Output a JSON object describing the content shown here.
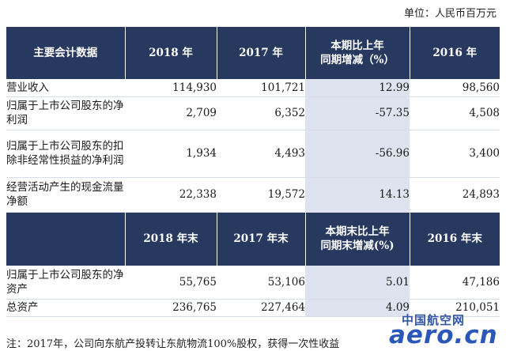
{
  "unit_text": "单位：人民币百万元",
  "header1": {
    "label": "主要会计数据",
    "col2018": "2018 年",
    "col2017": "2017 年",
    "change_line1": "本期比上年",
    "change_line2": "同期增减（%）",
    "col2016": "2016 年"
  },
  "rows1": [
    {
      "label": "营业收入",
      "v2018": "114,930",
      "v2017": "101,721",
      "change": "12.99",
      "v2016": "98,560"
    },
    {
      "label": "归属于上市公司股东的净利润",
      "v2018": "2,709",
      "v2017": "6,352",
      "change": "-57.35",
      "v2016": "4,508"
    },
    {
      "label": "归属于上市公司股东的扣除非经常性损益的净利润",
      "v2018": "1,934",
      "v2017": "4,493",
      "change": "-56.96",
      "v2016": "3,400"
    },
    {
      "label": "经营活动产生的现金流量净额",
      "v2018": "22,338",
      "v2017": "19,572",
      "change": "14.13",
      "v2016": "24,893"
    }
  ],
  "header2": {
    "label": "",
    "col2018": "2018 年末",
    "col2017": "2017 年末",
    "change_line1": "本期末比上年",
    "change_line2": "同期末增减(%)",
    "col2016": "2016 年末"
  },
  "rows2": [
    {
      "label": "归属于上市公司股东的净资产",
      "v2018": "55,765",
      "v2017": "53,106",
      "change": "5.01",
      "v2016": "47,186"
    },
    {
      "label": "总资产",
      "v2018": "236,765",
      "v2017": "227,464",
      "change": "4.09",
      "v2016": "210,051"
    }
  ],
  "note": "注：2017年，公司向东航产投转让东航物流100%股权，获得一次性收益",
  "watermark": {
    "cn": "中国航空网",
    "en": "aero.cn"
  }
}
